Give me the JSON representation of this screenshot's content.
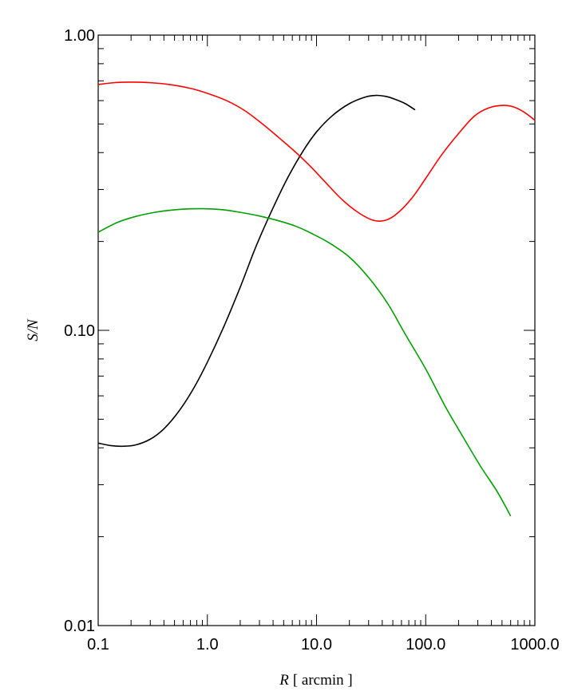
{
  "chart_data": {
    "type": "line",
    "title": "",
    "xlabel_var": "R",
    "xlabel_unit": "[ arcmin ]",
    "ylabel": "S/N",
    "xscale": "log",
    "yscale": "log",
    "xlim": [
      0.1,
      1000.0
    ],
    "ylim": [
      0.01,
      1.0
    ],
    "xticks": [
      0.1,
      1.0,
      10.0,
      100.0,
      1000.0
    ],
    "xtick_labels": [
      "0.1",
      "1.0",
      "10.0",
      "100.0",
      "1000.0"
    ],
    "yticks": [
      0.01,
      0.1,
      1.0
    ],
    "ytick_labels": [
      "0.01",
      "0.10",
      "1.00"
    ],
    "grid": false,
    "legend": "none",
    "series": [
      {
        "color": "#000000",
        "x": [
          0.1,
          0.13,
          0.17,
          0.22,
          0.3,
          0.4,
          0.55,
          0.75,
          1.0,
          1.4,
          2.0,
          2.8,
          4.0,
          5.5,
          7.5,
          10.0,
          14.0,
          20.0,
          28.0,
          35.0,
          43.0,
          52.0,
          65.0,
          80.0
        ],
        "y": [
          0.0415,
          0.0407,
          0.0405,
          0.0409,
          0.0428,
          0.0464,
          0.0533,
          0.0637,
          0.078,
          0.102,
          0.14,
          0.193,
          0.26,
          0.331,
          0.404,
          0.47,
          0.534,
          0.586,
          0.617,
          0.625,
          0.62,
          0.607,
          0.586,
          0.558
        ]
      },
      {
        "color": "#ff0000",
        "x": [
          0.1,
          0.14,
          0.2,
          0.3,
          0.45,
          0.7,
          1.0,
          1.5,
          2.2,
          3.2,
          4.5,
          6.5,
          9.0,
          12.0,
          17.0,
          24.0,
          33.0,
          43.0,
          55.0,
          75.0,
          100.0,
          140.0,
          200.0,
          280.0,
          380.0,
          520.0,
          650.0,
          800.0,
          1000.0
        ],
        "y": [
          0.68,
          0.69,
          0.693,
          0.69,
          0.68,
          0.66,
          0.635,
          0.6,
          0.555,
          0.5,
          0.45,
          0.4,
          0.356,
          0.318,
          0.278,
          0.251,
          0.236,
          0.236,
          0.249,
          0.281,
          0.327,
          0.393,
          0.464,
          0.532,
          0.567,
          0.578,
          0.57,
          0.548,
          0.515
        ]
      },
      {
        "color": "#00a000",
        "x": [
          0.1,
          0.15,
          0.22,
          0.33,
          0.5,
          0.7,
          1.0,
          1.4,
          2.0,
          3.0,
          4.5,
          6.5,
          9.0,
          13.0,
          20.0,
          30.0,
          45.0,
          65.0,
          100.0,
          150.0,
          220.0,
          320.0,
          450.0,
          600.0
        ],
        "y": [
          0.215,
          0.232,
          0.243,
          0.251,
          0.256,
          0.258,
          0.258,
          0.256,
          0.251,
          0.244,
          0.235,
          0.225,
          0.213,
          0.198,
          0.177,
          0.151,
          0.123,
          0.097,
          0.074,
          0.0555,
          0.0435,
          0.0345,
          0.0285,
          0.0235
        ]
      }
    ]
  }
}
